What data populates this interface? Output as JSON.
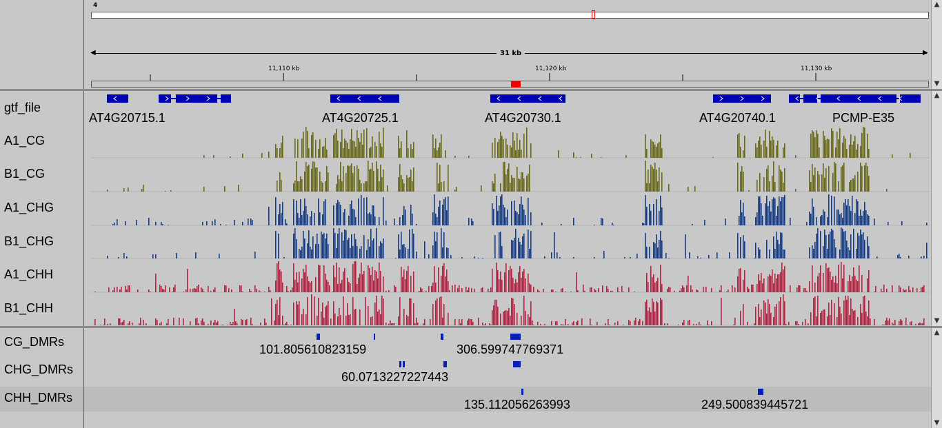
{
  "ruler": {
    "chromosome": "4",
    "span_label": "31 kb",
    "ticks": [
      "11,110 kb",
      "11,120 kb",
      "11,130 kb"
    ]
  },
  "tracks": [
    {
      "name": "gtf_file",
      "id": "gtf"
    },
    {
      "name": "A1_CG",
      "id": "a1cg"
    },
    {
      "name": "B1_CG",
      "id": "b1cg"
    },
    {
      "name": "A1_CHG",
      "id": "a1chg"
    },
    {
      "name": "B1_CHG",
      "id": "b1chg"
    },
    {
      "name": "A1_CHH",
      "id": "a1chh"
    },
    {
      "name": "B1_CHH",
      "id": "b1chh"
    }
  ],
  "genes": [
    "AT4G20715.1",
    "AT4G20725.1",
    "AT4G20730.1",
    "AT4G20740.1",
    "PCMP-E35"
  ],
  "dmr_tracks": [
    {
      "name": "CG_DMRs",
      "labels": [
        "101.805610823159",
        "306.599747769371"
      ]
    },
    {
      "name": "CHG_DMRs",
      "labels": [
        "60.0713227227443"
      ]
    },
    {
      "name": "CHH_DMRs",
      "labels": [
        "135.112056263993",
        "249.500839445721"
      ]
    }
  ],
  "colors": {
    "gene": "#0000b4",
    "cg": "#6b6b00",
    "chg": "#0a3c9c",
    "chh": "#d2143c",
    "dmr": "#0a1eb4",
    "highlight": "#ff0000"
  },
  "icons": {
    "scroll_up": "▲",
    "scroll_down": "▼"
  }
}
